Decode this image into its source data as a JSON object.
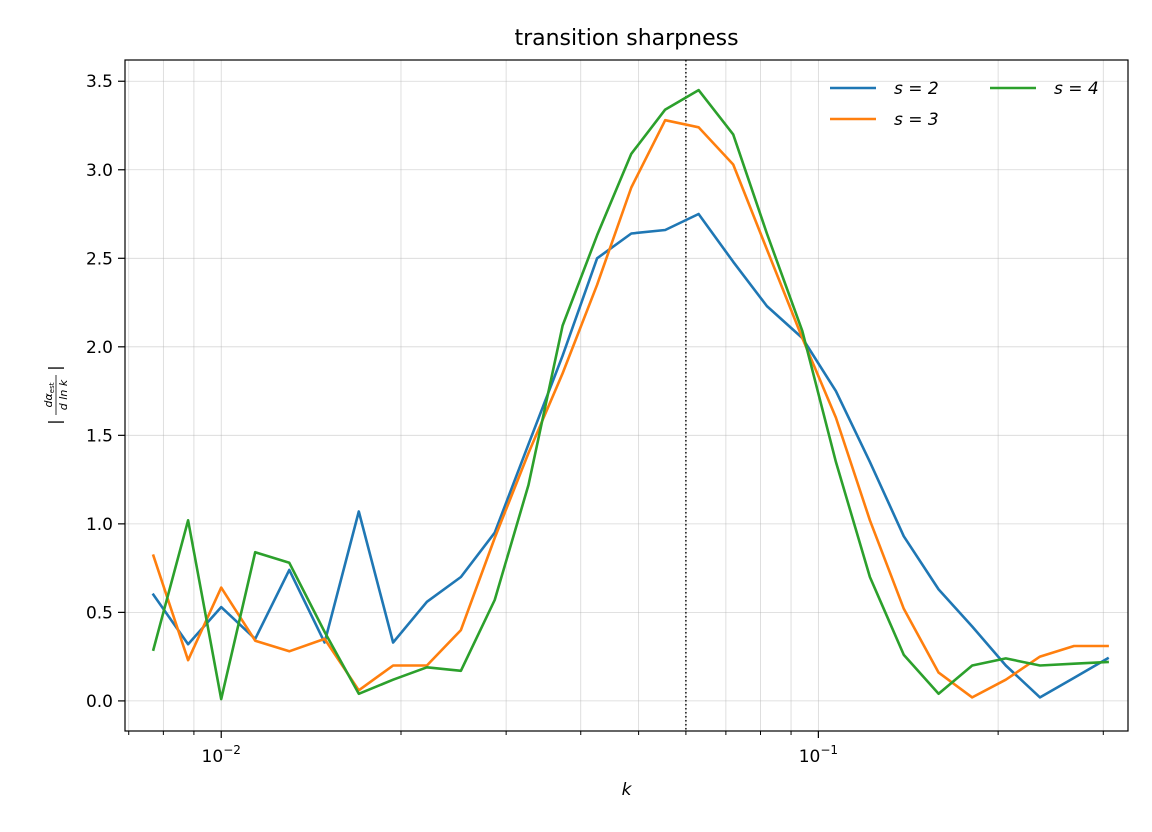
{
  "chart_data": {
    "type": "line",
    "title": "transition sharpness",
    "xlabel": "k",
    "ylabel": "|dα_est / d ln k|",
    "ylabel_parts": {
      "numerator": "dα",
      "numerator_sub": "est",
      "denominator": "d ln k"
    },
    "xscale": "log",
    "xlim": [
      0.0069,
      0.33
    ],
    "ylim": [
      -0.17,
      3.62
    ],
    "x_major_ticks": [
      0.01,
      0.1
    ],
    "x_major_tick_labels": [
      {
        "base": "10",
        "exp": "−2"
      },
      {
        "base": "10",
        "exp": "−1"
      }
    ],
    "y_ticks": [
      0.0,
      0.5,
      1.0,
      1.5,
      2.0,
      2.5,
      3.0,
      3.5
    ],
    "y_tick_labels": [
      "0.0",
      "0.5",
      "1.0",
      "1.5",
      "2.0",
      "2.5",
      "3.0",
      "3.5"
    ],
    "grid": true,
    "legend_placement": "top-right",
    "vline": {
      "x": 0.06,
      "style": "dotted",
      "color": "#000000"
    },
    "x": [
      0.0077,
      0.0088,
      0.01,
      0.0114,
      0.013,
      0.0149,
      0.017,
      0.0194,
      0.0221,
      0.0252,
      0.0287,
      0.0327,
      0.0373,
      0.0426,
      0.0486,
      0.0554,
      0.063,
      0.072,
      0.082,
      0.094,
      0.107,
      0.122,
      0.139,
      0.159,
      0.181,
      0.206,
      0.235,
      0.268,
      0.305
    ],
    "series": [
      {
        "name": "s = 2",
        "color": "#1f77b4",
        "values": [
          0.6,
          0.32,
          0.53,
          0.35,
          0.74,
          0.33,
          1.07,
          0.33,
          0.56,
          0.7,
          0.95,
          1.45,
          1.95,
          2.5,
          2.64,
          2.66,
          2.75,
          2.48,
          2.23,
          2.05,
          1.75,
          1.35,
          0.93,
          0.63,
          0.42,
          0.2,
          0.02,
          0.13,
          0.24
        ]
      },
      {
        "name": "s = 3",
        "color": "#ff7f0e",
        "values": [
          0.82,
          0.23,
          0.64,
          0.34,
          0.28,
          0.35,
          0.06,
          0.2,
          0.2,
          0.4,
          0.92,
          1.4,
          1.85,
          2.35,
          2.9,
          3.28,
          3.24,
          3.03,
          2.55,
          2.05,
          1.6,
          1.02,
          0.52,
          0.16,
          0.02,
          0.12,
          0.25,
          0.31,
          0.31
        ]
      },
      {
        "name": "s = 4",
        "color": "#2ca02c",
        "values": [
          0.29,
          1.02,
          0.01,
          0.84,
          0.78,
          0.39,
          0.04,
          0.12,
          0.19,
          0.17,
          0.57,
          1.22,
          2.12,
          2.63,
          3.09,
          3.34,
          3.45,
          3.2,
          2.64,
          2.09,
          1.35,
          0.7,
          0.26,
          0.04,
          0.2,
          0.24,
          0.2,
          0.21,
          0.22
        ]
      }
    ]
  }
}
